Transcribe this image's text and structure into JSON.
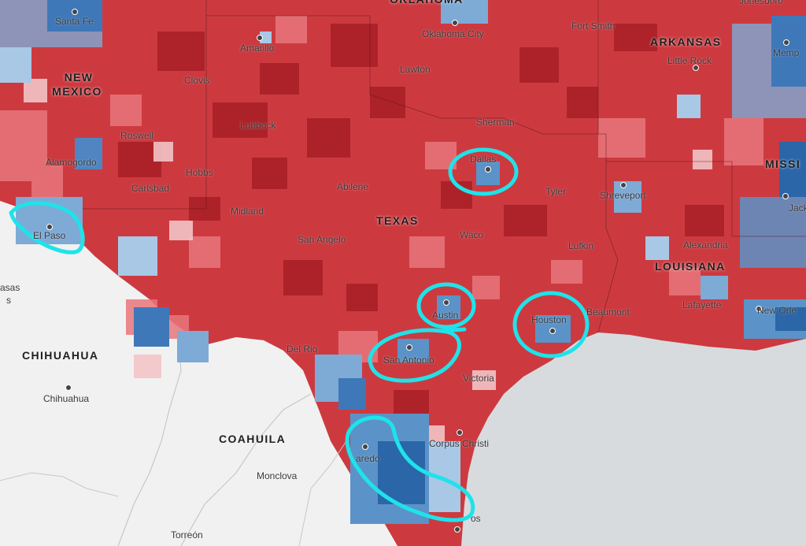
{
  "regions": {
    "oklahoma": "OKLAHOMA",
    "arkansas": "ARKANSAS",
    "new_mexico_line1": "NEW",
    "new_mexico_line2": "MEXICO",
    "texas": "TEXAS",
    "louisiana": "LOUISIANA",
    "mississippi": "MISSI",
    "chihuahua": "CHIHUAHUA",
    "coahuila": "COAHUILA"
  },
  "cities": {
    "santa_fe": "Santa Fe",
    "amarillo": "Amarillo",
    "oklahoma_city": "Oklahoma City",
    "fort_smith": "Fort Smith",
    "jonesboro": "Jonesboro",
    "little_rock": "Little Rock",
    "memphis": "Memp",
    "lawton": "Lawton",
    "clovis": "Clovis",
    "lubbock": "Lubbock",
    "sherman": "Sherman",
    "roswell": "Roswell",
    "alamogordo": "Alamogordo",
    "hobbs": "Hobbs",
    "carlsbad": "Carlsbad",
    "abilene": "Abilene",
    "dallas": "Dallas",
    "tyler": "Tyler",
    "shreveport": "Shreveport",
    "jackson": "Jackson",
    "midland": "Midland",
    "el_paso": "El Paso",
    "san_angelo": "San Angelo",
    "waco": "Waco",
    "lufkin": "Lufkin",
    "alexandria": "Alexandria",
    "austin": "Austin",
    "houston": "Houston",
    "beaumont": "Beaumont",
    "lafayette": "Lafayette",
    "new_orleans": "New Orle",
    "del_rio": "Del Rio",
    "san_antonio": "San Antonio",
    "victoria": "Victoria",
    "chihuahua": "Chihuahua",
    "corpus_christi": "Corpus Christi",
    "laredo": "aredo",
    "monclova": "Monclova",
    "brownsville": "os",
    "torreon": "Torreón",
    "partial_west": "asas",
    "partial_west2": "s"
  },
  "colors": {
    "strong_red": "#c1272d",
    "red": "#d8434a",
    "light_red": "#ee9a9c",
    "pale_red": "#f5c6c6",
    "light_blue": "#a8c8e6",
    "blue": "#5b93c8",
    "dark_blue": "#2b66a8",
    "outside_land": "#f2f2f2",
    "water": "#d8dbde",
    "highlight_circle": "#1ee3ea"
  },
  "highlight_circles": [
    "El Paso",
    "Dallas",
    "Austin",
    "San Antonio",
    "Houston",
    "Laredo / Rio Grande Valley"
  ]
}
